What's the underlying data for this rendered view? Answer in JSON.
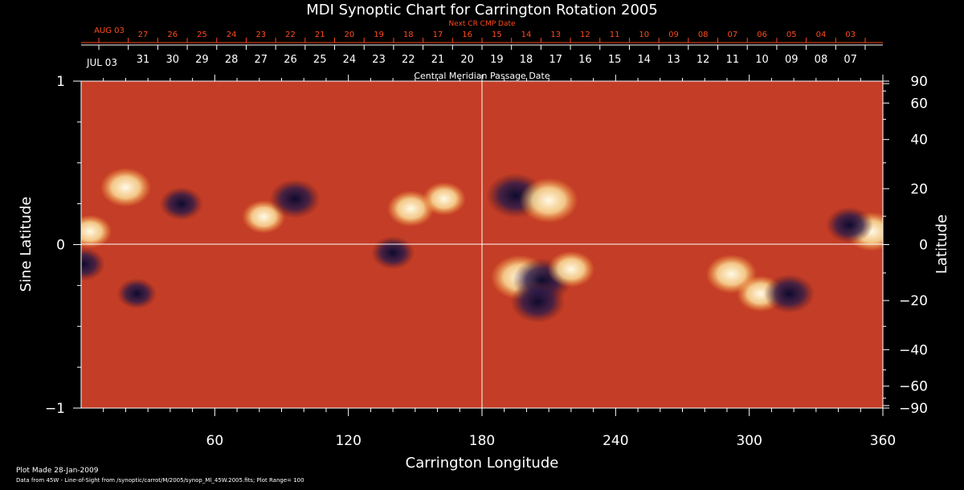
{
  "chart_data": {
    "type": "heatmap",
    "title": "MDI Synoptic Chart for Carrington Rotation 2005",
    "xlabel": "Carrington Longitude",
    "ylabel_left": "Sine Latitude",
    "ylabel_right": "Latitude",
    "xlim": [
      0,
      360
    ],
    "ylim": [
      -1,
      1
    ],
    "x_ticks": [
      60,
      120,
      180,
      240,
      300,
      360
    ],
    "y_ticks_left": [
      {
        "value": 1,
        "label": "1"
      },
      {
        "value": 0,
        "label": "0"
      },
      {
        "value": -1,
        "label": "−1"
      }
    ],
    "y_ticks_right": [
      "90",
      "60",
      "40",
      "20",
      "0",
      "−20",
      "−40",
      "−60",
      "−90"
    ],
    "y_ticks_right_values": [
      90,
      60,
      40,
      20,
      0,
      -20,
      -40,
      -60,
      -90
    ],
    "cmp_axis_label": "Central Meridian Passage Date",
    "cmp_start_label": "JUL 03",
    "cmp_dates": [
      "31",
      "30",
      "29",
      "28",
      "27",
      "26",
      "25",
      "24",
      "23",
      "22",
      "21",
      "20",
      "19",
      "18",
      "17",
      "16",
      "15",
      "14",
      "13",
      "12",
      "11",
      "10",
      "09",
      "08",
      "07"
    ],
    "next_cr_label": "Next CR CMP Date",
    "next_cr_start_label": "AUG 03",
    "next_cr_dates": [
      "27",
      "26",
      "25",
      "24",
      "23",
      "22",
      "21",
      "20",
      "19",
      "18",
      "17",
      "16",
      "15",
      "14",
      "13",
      "12",
      "11",
      "10",
      "09",
      "08",
      "07",
      "06",
      "05",
      "04",
      "03"
    ],
    "colormap": {
      "low": "#1a1440",
      "mid": "#e8400c",
      "high": "#fff8e0"
    },
    "plot_range": 100,
    "regions": [
      {
        "lon": 20,
        "lat": 0.35,
        "polarity": "positive",
        "strength": 0.8
      },
      {
        "lon": 45,
        "lat": 0.25,
        "polarity": "negative",
        "strength": 0.6
      },
      {
        "lon": 82,
        "lat": 0.17,
        "polarity": "positive",
        "strength": 0.6
      },
      {
        "lon": 96,
        "lat": 0.28,
        "polarity": "negative",
        "strength": 0.8
      },
      {
        "lon": 148,
        "lat": 0.22,
        "polarity": "positive",
        "strength": 0.7
      },
      {
        "lon": 163,
        "lat": 0.28,
        "polarity": "positive",
        "strength": 0.6
      },
      {
        "lon": 140,
        "lat": -0.05,
        "polarity": "negative",
        "strength": 0.6
      },
      {
        "lon": 195,
        "lat": 0.3,
        "polarity": "negative",
        "strength": 1.0
      },
      {
        "lon": 210,
        "lat": 0.27,
        "polarity": "positive",
        "strength": 1.0
      },
      {
        "lon": 197,
        "lat": -0.2,
        "polarity": "positive",
        "strength": 1.0
      },
      {
        "lon": 207,
        "lat": -0.22,
        "polarity": "negative",
        "strength": 1.0
      },
      {
        "lon": 205,
        "lat": -0.35,
        "polarity": "negative",
        "strength": 0.9
      },
      {
        "lon": 220,
        "lat": -0.15,
        "polarity": "positive",
        "strength": 0.7
      },
      {
        "lon": 292,
        "lat": -0.18,
        "polarity": "positive",
        "strength": 0.8
      },
      {
        "lon": 305,
        "lat": -0.3,
        "polarity": "positive",
        "strength": 0.7
      },
      {
        "lon": 318,
        "lat": -0.3,
        "polarity": "negative",
        "strength": 0.8
      },
      {
        "lon": 355,
        "lat": 0.08,
        "polarity": "positive",
        "strength": 0.8
      },
      {
        "lon": 345,
        "lat": 0.12,
        "polarity": "negative",
        "strength": 0.7
      },
      {
        "lon": 4,
        "lat": 0.08,
        "polarity": "positive",
        "strength": 0.6
      },
      {
        "lon": 1,
        "lat": -0.12,
        "polarity": "negative",
        "strength": 0.6
      },
      {
        "lon": 25,
        "lat": -0.3,
        "polarity": "negative",
        "strength": 0.5
      }
    ]
  },
  "footer": {
    "plot_made": "Plot Made 28-Jan-2009",
    "data_source": "Data from 45W - Line-of-Sight from /synoptic/carrot/M/2005/synop_Ml_45W.2005.fits; Plot Range= 100"
  }
}
